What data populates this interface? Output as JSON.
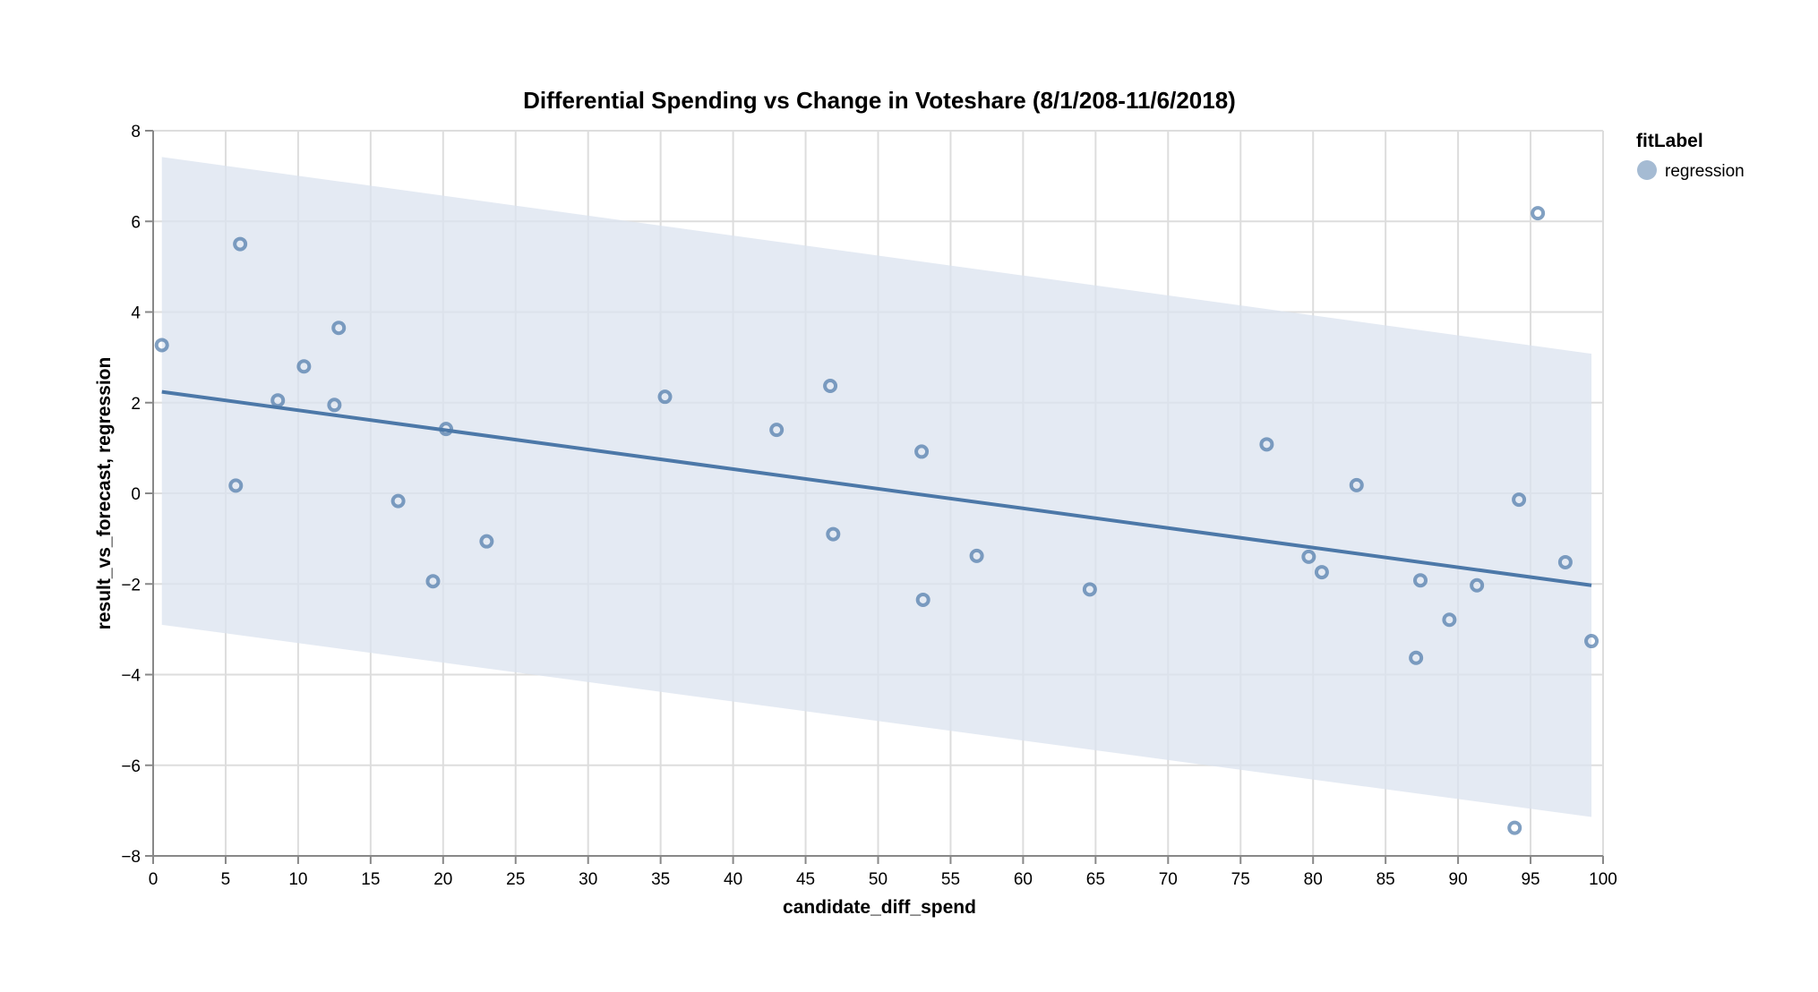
{
  "chart_data": {
    "type": "scatter",
    "title": "Differential Spending vs Change in Voteshare (8/1/208-11/6/2018)",
    "xlabel": "candidate_diff_spend",
    "ylabel": "result_vs_forecast, regression",
    "xlim": [
      0,
      100
    ],
    "ylim": [
      -8,
      8
    ],
    "x_ticks": [
      0,
      5,
      10,
      15,
      20,
      25,
      30,
      35,
      40,
      45,
      50,
      55,
      60,
      65,
      70,
      75,
      80,
      85,
      90,
      95,
      100
    ],
    "y_ticks": [
      -8,
      -6,
      -4,
      -2,
      0,
      2,
      4,
      6,
      8
    ],
    "x_tick_labels": [
      "0",
      "5",
      "10",
      "15",
      "20",
      "25",
      "30",
      "35",
      "40",
      "45",
      "50",
      "55",
      "60",
      "65",
      "70",
      "75",
      "80",
      "85",
      "90",
      "95",
      "100"
    ],
    "y_tick_labels": [
      "−8",
      "−6",
      "−4",
      "−2",
      "0",
      "2",
      "4",
      "6",
      "8"
    ],
    "grid": true,
    "legend": {
      "title": "fitLabel",
      "placement": "top-right",
      "entries": [
        "regression"
      ]
    },
    "colors": {
      "point": "#4c78a8",
      "line": "#4c78a8",
      "band": "#dbe3ef"
    },
    "points": [
      {
        "x": 0.6,
        "y": 3.27
      },
      {
        "x": 5.7,
        "y": 0.17
      },
      {
        "x": 6.0,
        "y": 5.5
      },
      {
        "x": 8.6,
        "y": 2.05
      },
      {
        "x": 10.4,
        "y": 2.8
      },
      {
        "x": 12.5,
        "y": 1.95
      },
      {
        "x": 12.8,
        "y": 3.65
      },
      {
        "x": 16.9,
        "y": -0.17
      },
      {
        "x": 19.3,
        "y": -1.94
      },
      {
        "x": 20.2,
        "y": 1.42
      },
      {
        "x": 23.0,
        "y": -1.06
      },
      {
        "x": 35.3,
        "y": 2.13
      },
      {
        "x": 43.0,
        "y": 1.4
      },
      {
        "x": 46.7,
        "y": 2.37
      },
      {
        "x": 46.9,
        "y": -0.9
      },
      {
        "x": 53.0,
        "y": 0.92
      },
      {
        "x": 53.1,
        "y": -2.35
      },
      {
        "x": 56.8,
        "y": -1.38
      },
      {
        "x": 64.6,
        "y": -2.12
      },
      {
        "x": 76.8,
        "y": 1.08
      },
      {
        "x": 79.7,
        "y": -1.4
      },
      {
        "x": 80.6,
        "y": -1.74
      },
      {
        "x": 83.0,
        "y": 0.18
      },
      {
        "x": 87.1,
        "y": -3.63
      },
      {
        "x": 87.4,
        "y": -1.92
      },
      {
        "x": 89.4,
        "y": -2.79
      },
      {
        "x": 91.3,
        "y": -2.03
      },
      {
        "x": 93.9,
        "y": -7.38
      },
      {
        "x": 94.2,
        "y": -0.14
      },
      {
        "x": 95.5,
        "y": 6.18
      },
      {
        "x": 97.4,
        "y": -1.52
      },
      {
        "x": 99.2,
        "y": -3.26
      }
    ],
    "regression": {
      "x": [
        0.6,
        99.2
      ],
      "y": [
        2.24,
        -2.03
      ],
      "band_upper": [
        7.42,
        3.08
      ],
      "band_lower": [
        -2.9,
        -7.14
      ]
    }
  }
}
